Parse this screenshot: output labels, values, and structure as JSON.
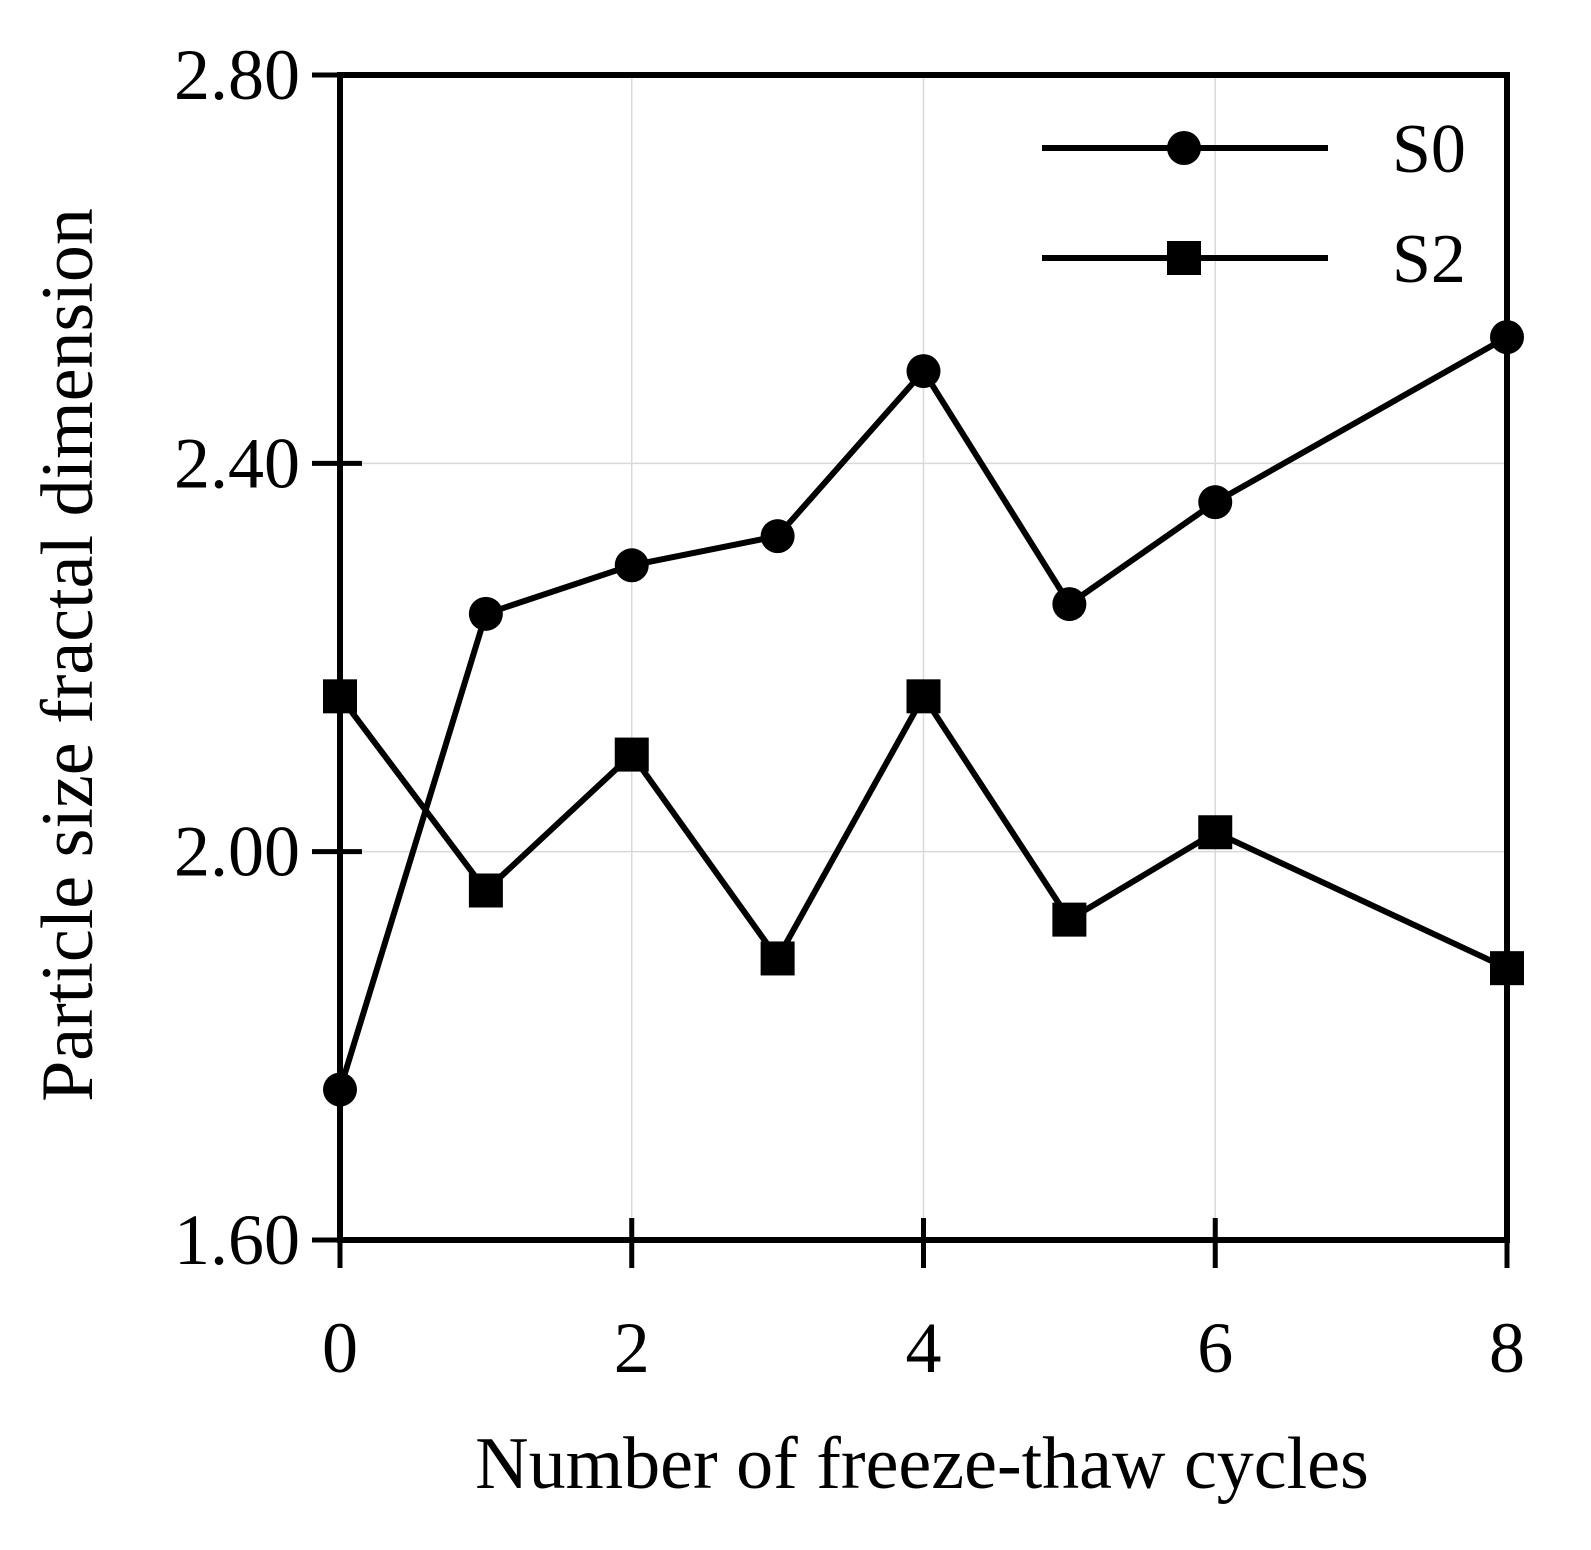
{
  "chart_data": {
    "type": "line",
    "title": "",
    "xlabel": "Number of freeze-thaw cycles",
    "ylabel": "Particle size fractal dimension",
    "xlim": [
      0,
      8
    ],
    "ylim": [
      1.6,
      2.8
    ],
    "x_ticks": [
      0,
      2,
      4,
      6,
      8
    ],
    "x_tick_labels": [
      "0",
      "2",
      "4",
      "6",
      "8"
    ],
    "y_ticks": [
      1.6,
      2.0,
      2.4,
      2.8
    ],
    "y_tick_labels": [
      "1.60",
      "2.00",
      "2.40",
      "2.80"
    ],
    "grid": true,
    "legend_position": "top-right",
    "x": [
      0,
      1,
      2,
      3,
      4,
      5,
      6,
      7,
      8
    ],
    "series": [
      {
        "name": "S0",
        "marker": "circle",
        "values": [
          1.755,
          2.245,
          2.295,
          2.325,
          2.495,
          2.255,
          2.36,
          null,
          2.53
        ]
      },
      {
        "name": "S2",
        "marker": "square",
        "values": [
          2.16,
          1.96,
          2.1,
          1.89,
          2.16,
          1.93,
          2.02,
          null,
          1.88
        ]
      }
    ],
    "colors": {
      "line": "#000000",
      "grid": "#d9d9d9",
      "frame": "#000000"
    }
  }
}
